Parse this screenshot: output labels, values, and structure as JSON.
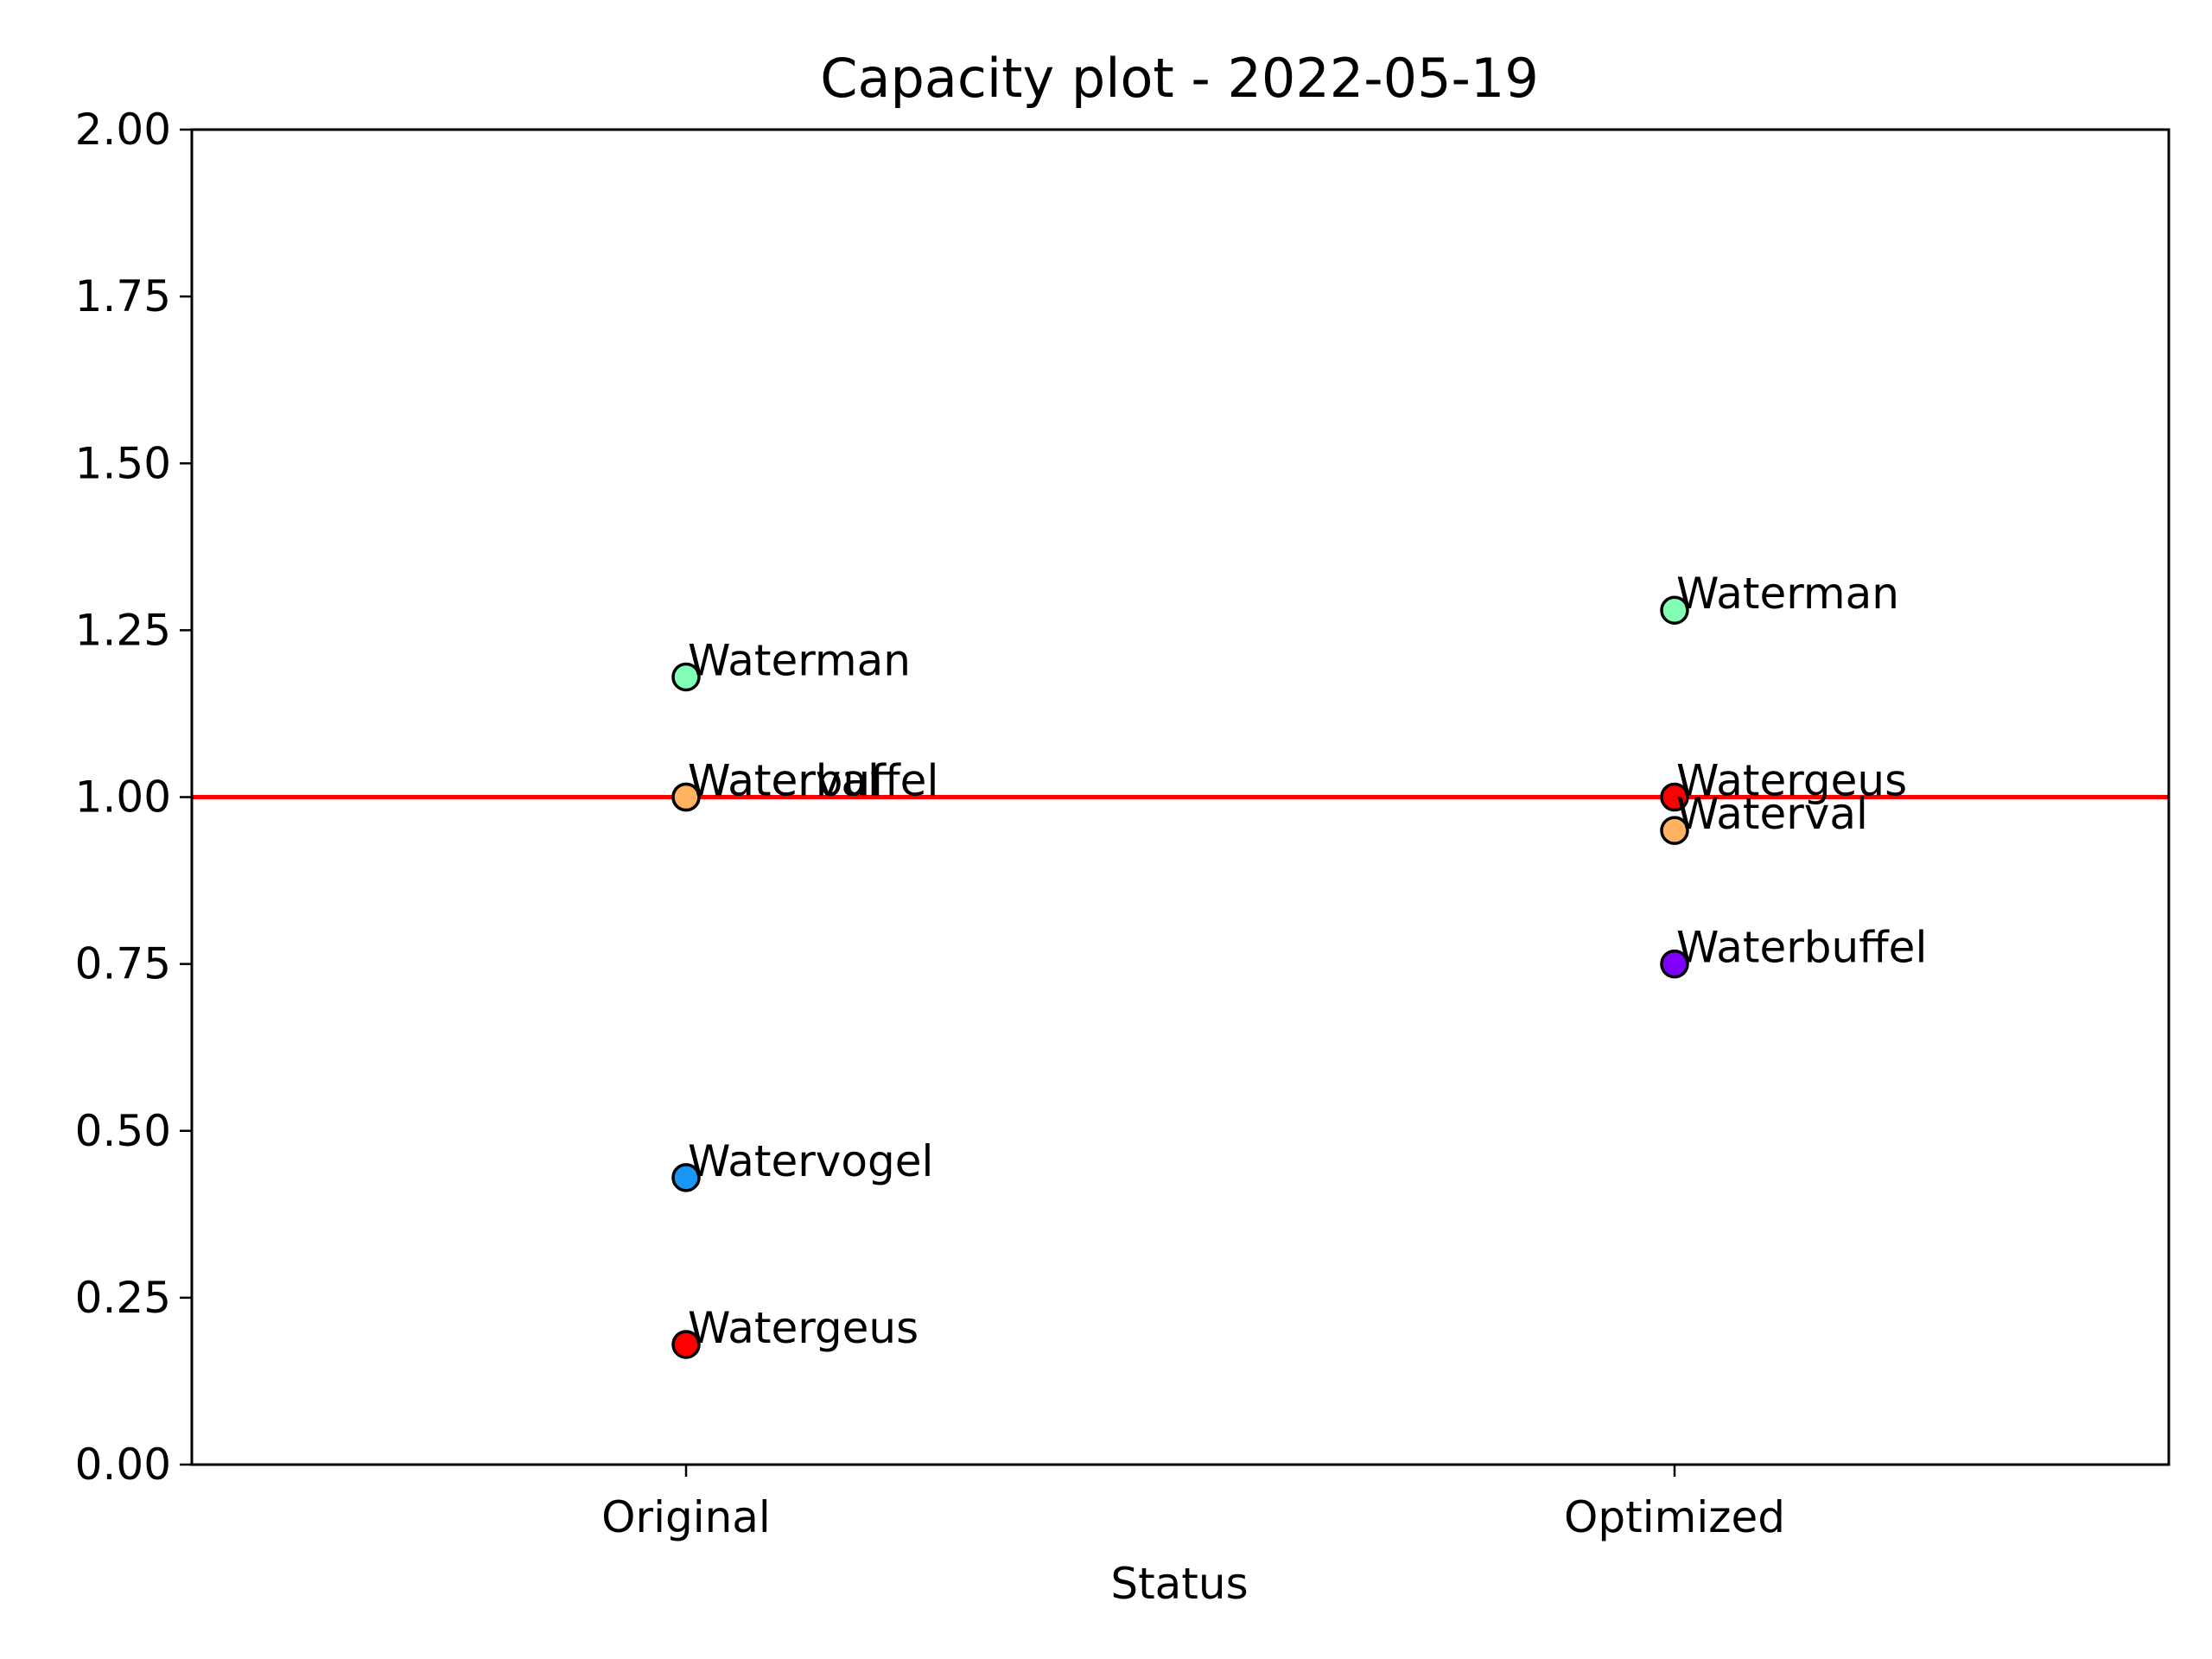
{
  "chart_data": {
    "type": "scatter",
    "title": "Capacity plot - 2022-05-19",
    "xlabel": "Status",
    "ylabel": "",
    "categories": [
      "Original",
      "Optimized"
    ],
    "ylim": [
      0,
      2
    ],
    "yticks": [
      "0.00",
      "0.25",
      "0.50",
      "0.75",
      "1.00",
      "1.25",
      "1.50",
      "1.75",
      "2.00"
    ],
    "grid": false,
    "reference_line": {
      "y": 1.0,
      "color": "#ff0000"
    },
    "points": [
      {
        "category": "Original",
        "label": "Waterman",
        "value": 1.18,
        "color": "#80ffb4"
      },
      {
        "category": "Original",
        "label": "Waterbuffel",
        "value": 1.0,
        "color": "#8000ff"
      },
      {
        "category": "Original",
        "label": "Waterval",
        "value": 1.0,
        "color": "#ffb360"
      },
      {
        "category": "Original",
        "label": "Watervogel",
        "value": 0.43,
        "color": "#1996f3"
      },
      {
        "category": "Original",
        "label": "Watergeus",
        "value": 0.18,
        "color": "#ff0000"
      },
      {
        "category": "Optimized",
        "label": "Waterman",
        "value": 1.28,
        "color": "#80ffb4"
      },
      {
        "category": "Optimized",
        "label": "Watergeus",
        "value": 1.0,
        "color": "#ff0000"
      },
      {
        "category": "Optimized",
        "label": "Waterval",
        "value": 0.95,
        "color": "#ffb360"
      },
      {
        "category": "Optimized",
        "label": "Waterbuffel",
        "value": 0.75,
        "color": "#8000ff"
      }
    ]
  }
}
